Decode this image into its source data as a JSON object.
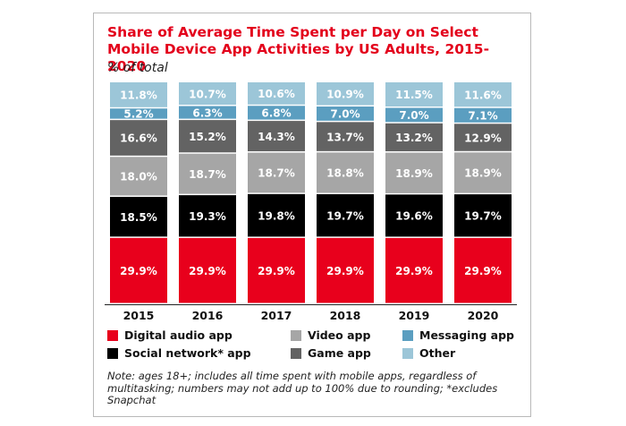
{
  "title": "Share of Average Time Spent per Day on Select Mobile Device App Activities by US Adults, 2015-2020",
  "subtitle": "% of total",
  "note": "Note: ages 18+; includes all time spent with mobile apps, regardless of multitasking; numbers may not add up to 100% due to rounding; *excludes Snapchat",
  "legend": [
    {
      "label": "Digital audio app",
      "color": "#e8001c"
    },
    {
      "label": "Video app",
      "color": "#a6a6a6"
    },
    {
      "label": "Messaging app",
      "color": "#5b9ec0"
    },
    {
      "label": "Social network* app",
      "color": "#000000"
    },
    {
      "label": "Game app",
      "color": "#636363"
    },
    {
      "label": "Other",
      "color": "#9cc6d8"
    }
  ],
  "chart_data": {
    "type": "bar",
    "stacked": true,
    "categories": [
      "2015",
      "2016",
      "2017",
      "2018",
      "2019",
      "2020"
    ],
    "series": [
      {
        "name": "Digital audio app",
        "color": "#e8001c",
        "label_color": "#ffffff",
        "values": [
          29.9,
          29.9,
          29.9,
          29.9,
          29.9,
          29.9
        ],
        "labels": [
          "29.9%",
          "29.9%",
          "29.9%",
          "29.9%",
          "29.9%",
          "29.9%"
        ]
      },
      {
        "name": "Social network* app",
        "color": "#000000",
        "label_color": "#ffffff",
        "values": [
          18.5,
          19.3,
          19.8,
          19.7,
          19.6,
          19.7
        ],
        "labels": [
          "18.5%",
          "19.3%",
          "19.8%",
          "19.7%",
          "19.6%",
          "19.7%"
        ]
      },
      {
        "name": "Video app",
        "color": "#a6a6a6",
        "label_color": "#ffffff",
        "values": [
          18.0,
          18.7,
          18.7,
          18.8,
          18.9,
          18.9
        ],
        "labels": [
          "18.0%",
          "18.7%",
          "18.7%",
          "18.8%",
          "18.9%",
          "18.9%"
        ]
      },
      {
        "name": "Game app",
        "color": "#636363",
        "label_color": "#ffffff",
        "values": [
          16.6,
          15.2,
          14.3,
          13.7,
          13.2,
          12.9
        ],
        "labels": [
          "16.6%",
          "15.2%",
          "14.3%",
          "13.7%",
          "13.2%",
          "12.9%"
        ]
      },
      {
        "name": "Messaging app",
        "color": "#5b9ec0",
        "label_color": "#ffffff",
        "values": [
          5.2,
          6.3,
          6.8,
          7.0,
          7.0,
          7.1
        ],
        "labels": [
          "5.2%",
          "6.3%",
          "6.8%",
          "7.0%",
          "7.0%",
          "7.1%"
        ]
      },
      {
        "name": "Other",
        "color": "#9cc6d8",
        "label_color": "#ffffff",
        "values": [
          11.8,
          10.7,
          10.6,
          10.9,
          11.5,
          11.6
        ],
        "labels": [
          "11.8%",
          "10.7%",
          "10.6%",
          "10.9%",
          "11.5%",
          "11.6%"
        ]
      }
    ]
  }
}
